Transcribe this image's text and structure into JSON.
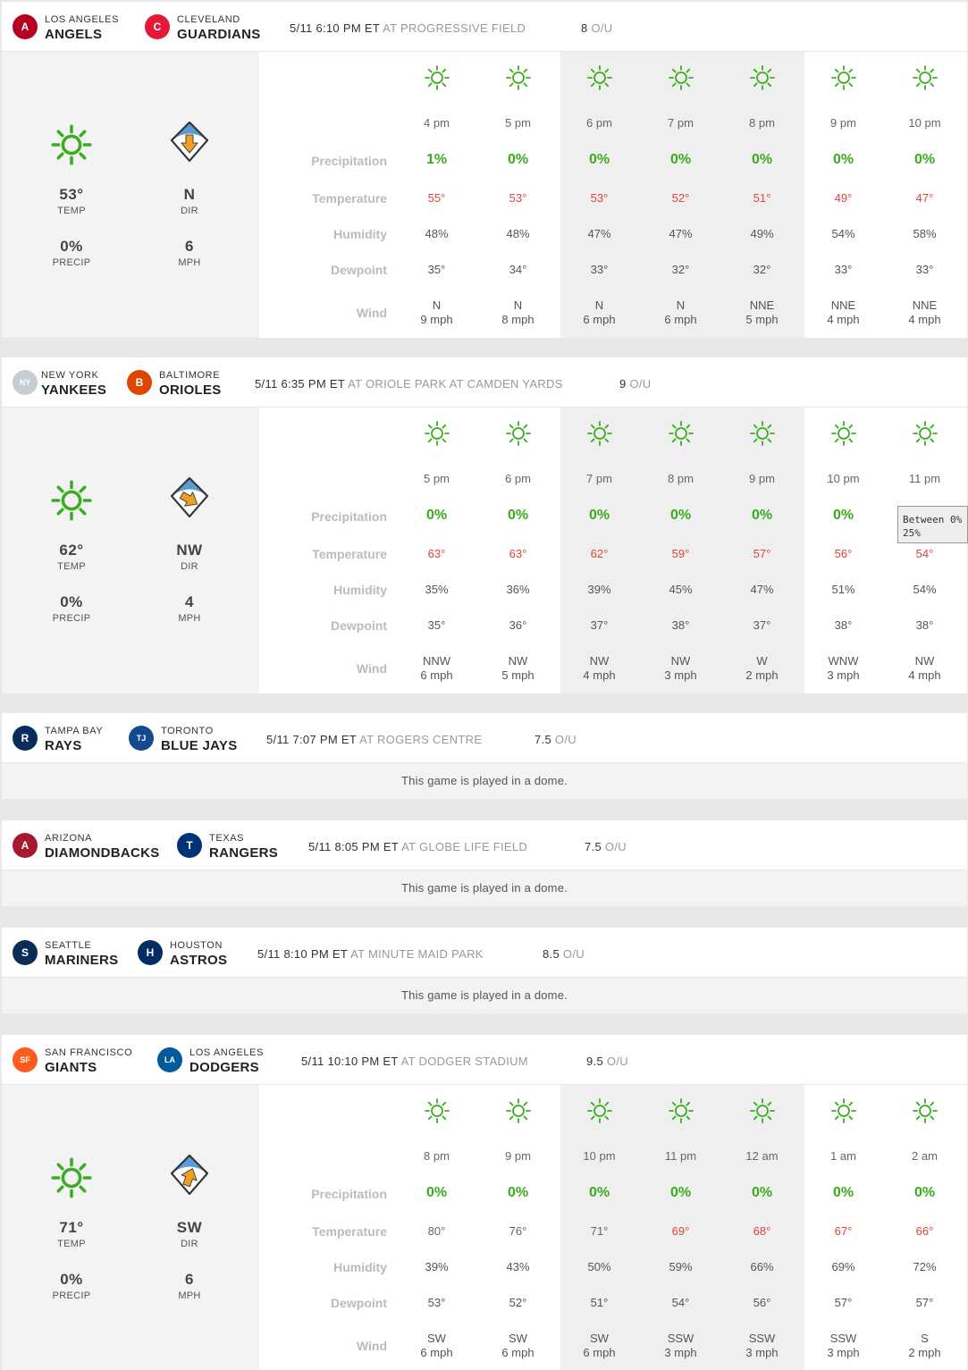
{
  "colors": {
    "sun": "#3aad1f",
    "temp_red": "#e0443a",
    "temp_gray": "#666666",
    "arrow": "#f0a020"
  },
  "row_labels": {
    "precip": "Precipitation",
    "temp": "Temperature",
    "humidity": "Humidity",
    "dewpoint": "Dewpoint",
    "wind": "Wind"
  },
  "summary_labels": {
    "temp": "TEMP",
    "precip": "PRECIP",
    "dir": "DIR",
    "mph": "MPH"
  },
  "ou_label": "O/U",
  "games": [
    {
      "away": {
        "city": "LOS ANGELES",
        "name": "ANGELS",
        "logo": "A",
        "color": "#ba0021"
      },
      "home": {
        "city": "CLEVELAND",
        "name": "GUARDIANS",
        "logo": "C",
        "color": "#e31937"
      },
      "time": "5/11 6:10 PM ET",
      "venue": "AT PROGRESSIVE FIELD",
      "ou": "8",
      "summary": {
        "temp": "53°",
        "precip": "0%",
        "dir": "N",
        "mph": "6",
        "arrow_icon": "arrow-down-icon"
      },
      "hours": [
        {
          "hour": "4 pm",
          "precip": "1%",
          "temp": "55°",
          "hum": "48%",
          "dew": "35°",
          "wdir": "N",
          "wspd": "9 mph"
        },
        {
          "hour": "5 pm",
          "precip": "0%",
          "temp": "53°",
          "hum": "48%",
          "dew": "34°",
          "wdir": "N",
          "wspd": "8 mph"
        },
        {
          "hour": "6 pm",
          "precip": "0%",
          "temp": "53°",
          "hum": "47%",
          "dew": "33°",
          "wdir": "N",
          "wspd": "6 mph"
        },
        {
          "hour": "7 pm",
          "precip": "0%",
          "temp": "52°",
          "hum": "47%",
          "dew": "32°",
          "wdir": "N",
          "wspd": "6 mph"
        },
        {
          "hour": "8 pm",
          "precip": "0%",
          "temp": "51°",
          "hum": "49%",
          "dew": "32°",
          "wdir": "NNE",
          "wspd": "5 mph"
        },
        {
          "hour": "9 pm",
          "precip": "0%",
          "temp": "49°",
          "hum": "54%",
          "dew": "33°",
          "wdir": "NNE",
          "wspd": "4 mph"
        },
        {
          "hour": "10 pm",
          "precip": "0%",
          "temp": "47°",
          "hum": "58%",
          "dew": "33°",
          "wdir": "NNE",
          "wspd": "4 mph"
        }
      ]
    },
    {
      "away": {
        "city": "NEW YORK",
        "name": "YANKEES",
        "logo": "NY",
        "color": "#c4ced4"
      },
      "home": {
        "city": "BALTIMORE",
        "name": "ORIOLES",
        "logo": "B",
        "color": "#df4601"
      },
      "time": "5/11 6:35 PM ET",
      "venue": "AT ORIOLE PARK AT CAMDEN YARDS",
      "ou": "9",
      "summary": {
        "temp": "62°",
        "precip": "0%",
        "dir": "NW",
        "mph": "4",
        "arrow_icon": "arrow-right-icon"
      },
      "hours": [
        {
          "hour": "5 pm",
          "precip": "0%",
          "temp": "63°",
          "hum": "35%",
          "dew": "35°",
          "wdir": "NNW",
          "wspd": "6 mph"
        },
        {
          "hour": "6 pm",
          "precip": "0%",
          "temp": "63°",
          "hum": "36%",
          "dew": "36°",
          "wdir": "NW",
          "wspd": "5 mph"
        },
        {
          "hour": "7 pm",
          "precip": "0%",
          "temp": "62°",
          "hum": "39%",
          "dew": "37°",
          "wdir": "NW",
          "wspd": "4 mph"
        },
        {
          "hour": "8 pm",
          "precip": "0%",
          "temp": "59°",
          "hum": "45%",
          "dew": "38°",
          "wdir": "NW",
          "wspd": "3 mph"
        },
        {
          "hour": "9 pm",
          "precip": "0%",
          "temp": "57°",
          "hum": "47%",
          "dew": "37°",
          "wdir": "W",
          "wspd": "2 mph"
        },
        {
          "hour": "10 pm",
          "precip": "0%",
          "temp": "56°",
          "hum": "51%",
          "dew": "38°",
          "wdir": "WNW",
          "wspd": "3 mph"
        },
        {
          "hour": "11 pm",
          "precip": "",
          "temp": "54°",
          "hum": "54%",
          "dew": "38°",
          "wdir": "NW",
          "wspd": "4 mph"
        }
      ],
      "tooltip": {
        "line1": "Between 0%",
        "line2": "25%"
      }
    },
    {
      "away": {
        "city": "TAMPA BAY",
        "name": "RAYS",
        "logo": "R",
        "color": "#092c5c"
      },
      "home": {
        "city": "TORONTO",
        "name": "BLUE JAYS",
        "logo": "TJ",
        "color": "#134a8e"
      },
      "time": "5/11 7:07 PM ET",
      "venue": "AT ROGERS CENTRE",
      "ou": "7.5",
      "dome": "This game is played in a dome."
    },
    {
      "away": {
        "city": "ARIZONA",
        "name": "DIAMONDBACKS",
        "logo": "A",
        "color": "#a71930"
      },
      "home": {
        "city": "TEXAS",
        "name": "RANGERS",
        "logo": "T",
        "color": "#003278"
      },
      "time": "5/11 8:05 PM ET",
      "venue": "AT GLOBE LIFE FIELD",
      "ou": "7.5",
      "dome": "This game is played in a dome."
    },
    {
      "away": {
        "city": "SEATTLE",
        "name": "MARINERS",
        "logo": "S",
        "color": "#0c2c56"
      },
      "home": {
        "city": "HOUSTON",
        "name": "ASTROS",
        "logo": "H",
        "color": "#002d62"
      },
      "time": "5/11 8:10 PM ET",
      "venue": "AT MINUTE MAID PARK",
      "ou": "8.5",
      "dome": "This game is played in a dome."
    },
    {
      "away": {
        "city": "SAN FRANCISCO",
        "name": "GIANTS",
        "logo": "SF",
        "color": "#fd5a1e"
      },
      "home": {
        "city": "LOS ANGELES",
        "name": "DODGERS",
        "logo": "LA",
        "color": "#005a9c"
      },
      "time": "5/11 10:10 PM ET",
      "venue": "AT DODGER STADIUM",
      "ou": "9.5",
      "summary": {
        "temp": "71°",
        "precip": "0%",
        "dir": "SW",
        "mph": "6",
        "arrow_icon": "arrow-up-icon"
      },
      "hours": [
        {
          "hour": "8 pm",
          "precip": "0%",
          "temp": "80°",
          "hum": "39%",
          "dew": "53°",
          "wdir": "SW",
          "wspd": "6 mph"
        },
        {
          "hour": "9 pm",
          "precip": "0%",
          "temp": "76°",
          "hum": "43%",
          "dew": "52°",
          "wdir": "SW",
          "wspd": "6 mph"
        },
        {
          "hour": "10 pm",
          "precip": "0%",
          "temp": "71°",
          "hum": "50%",
          "dew": "51°",
          "wdir": "SW",
          "wspd": "6 mph"
        },
        {
          "hour": "11 pm",
          "precip": "0%",
          "temp": "69°",
          "hum": "59%",
          "dew": "54°",
          "wdir": "SSW",
          "wspd": "3 mph"
        },
        {
          "hour": "12 am",
          "precip": "0%",
          "temp": "68°",
          "hum": "66%",
          "dew": "56°",
          "wdir": "SSW",
          "wspd": "3 mph"
        },
        {
          "hour": "1 am",
          "precip": "0%",
          "temp": "67°",
          "hum": "69%",
          "dew": "57°",
          "wdir": "SSW",
          "wspd": "3 mph"
        },
        {
          "hour": "2 am",
          "precip": "0%",
          "temp": "66°",
          "hum": "72%",
          "dew": "57°",
          "wdir": "S",
          "wspd": "2 mph"
        }
      ]
    }
  ]
}
